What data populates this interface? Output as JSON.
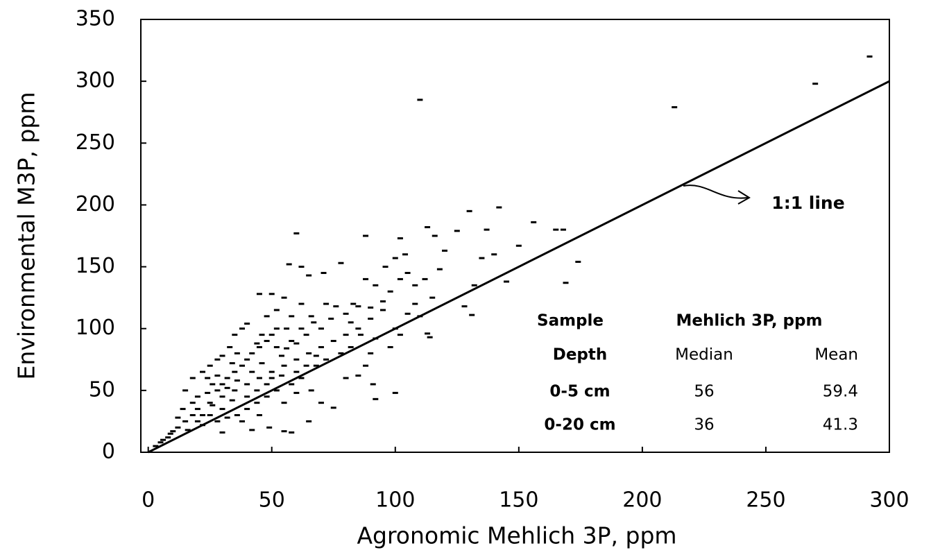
{
  "chart_data": {
    "type": "scatter",
    "x_label": "Agronomic Mehlich 3P, ppm",
    "y_label": "Environmental M3P, ppm",
    "color": "#000000",
    "xlim": [
      -3,
      300
    ],
    "xticks": [
      0,
      50,
      100,
      150,
      200,
      250,
      300
    ],
    "ylim": [
      0,
      350
    ],
    "yticks": [
      0,
      50,
      100,
      150,
      200,
      250,
      300,
      350
    ],
    "grid": false,
    "x": [
      110,
      213,
      270,
      292,
      169,
      174,
      165,
      168,
      156,
      142,
      130,
      125,
      113,
      116,
      120,
      102,
      104,
      100,
      60,
      88,
      78,
      71,
      65,
      57,
      62,
      45,
      50,
      55,
      67,
      90,
      95,
      108,
      112,
      118,
      132,
      135,
      140,
      145,
      150,
      137,
      128,
      131,
      113,
      114,
      100,
      91,
      92,
      75,
      65,
      58,
      55,
      49,
      42,
      30,
      22,
      10,
      5,
      3,
      8,
      12,
      15,
      18,
      20,
      20,
      18,
      15,
      25,
      28,
      30,
      32,
      35,
      38,
      40,
      42,
      45,
      48,
      50,
      52,
      35,
      38,
      40,
      25,
      22,
      28,
      30,
      33,
      30,
      35,
      40,
      45,
      50,
      55,
      60,
      65,
      70,
      75,
      80,
      85,
      72,
      78,
      82,
      68,
      62,
      58,
      52,
      48,
      44,
      40,
      36,
      32,
      28,
      25,
      20,
      26,
      24,
      34,
      36,
      42,
      46,
      54,
      56,
      60,
      64,
      70,
      74,
      80,
      85,
      90,
      95,
      98,
      102,
      105,
      108,
      88,
      92,
      96,
      83,
      86,
      92,
      100,
      105,
      110,
      115,
      60,
      66,
      70,
      80,
      85,
      88,
      90,
      98,
      102,
      55,
      45,
      38,
      18,
      14,
      12,
      16,
      6,
      9,
      24,
      28,
      32,
      36,
      44,
      46,
      52,
      58,
      62,
      66,
      72,
      76,
      82,
      44,
      48,
      50,
      54,
      40,
      34,
      30,
      26,
      22,
      60,
      64,
      68,
      56,
      58,
      62,
      48,
      52
    ],
    "values": [
      285,
      279,
      298,
      320,
      137,
      154,
      180,
      180,
      186,
      198,
      195,
      179,
      182,
      175,
      163,
      173,
      160,
      157,
      177,
      175,
      153,
      145,
      143,
      152,
      150,
      128,
      128,
      125,
      105,
      117,
      122,
      135,
      140,
      148,
      135,
      157,
      160,
      138,
      167,
      180,
      118,
      111,
      96,
      93,
      48,
      55,
      43,
      36,
      25,
      16,
      17,
      20,
      18,
      16,
      22,
      17,
      8,
      5,
      12,
      20,
      25,
      30,
      35,
      45,
      60,
      50,
      40,
      50,
      55,
      60,
      65,
      70,
      75,
      80,
      85,
      90,
      95,
      100,
      95,
      100,
      104,
      70,
      65,
      75,
      78,
      85,
      45,
      50,
      55,
      60,
      65,
      70,
      75,
      80,
      85,
      90,
      95,
      100,
      75,
      80,
      85,
      70,
      60,
      55,
      50,
      45,
      40,
      35,
      30,
      28,
      25,
      30,
      25,
      55,
      60,
      72,
      58,
      65,
      72,
      78,
      84,
      88,
      95,
      100,
      108,
      112,
      118,
      108,
      115,
      130,
      140,
      145,
      120,
      140,
      135,
      150,
      120,
      95,
      92,
      100,
      112,
      110,
      125,
      48,
      50,
      40,
      60,
      62,
      70,
      80,
      85,
      95,
      40,
      30,
      25,
      40,
      35,
      28,
      18,
      10,
      15,
      48,
      62,
      52,
      80,
      88,
      95,
      85,
      90,
      100,
      110,
      120,
      118,
      105,
      50,
      55,
      60,
      62,
      45,
      42,
      35,
      38,
      30,
      65,
      70,
      78,
      100,
      110,
      120,
      110,
      115
    ],
    "reference_line": {
      "label": "1:1 line",
      "x": [
        0,
        300
      ],
      "y": [
        0,
        300
      ]
    },
    "table": {
      "header": [
        [
          "Sample",
          "Mehlich 3P, ppm"
        ],
        [
          "Depth",
          "Median",
          "Mean"
        ]
      ],
      "rows": [
        [
          "0-5 cm",
          56,
          59.4
        ],
        [
          "0-20 cm",
          36,
          41.3
        ]
      ]
    }
  }
}
